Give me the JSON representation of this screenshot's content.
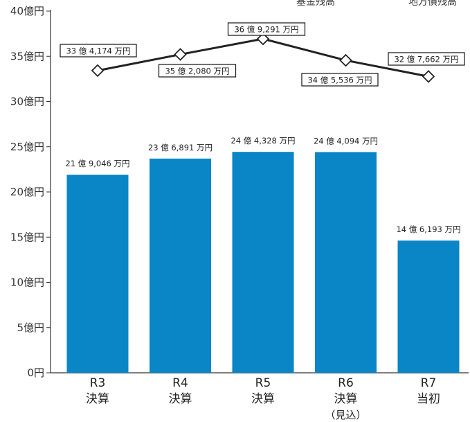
{
  "chart_data": {
    "type": "bar",
    "y_ticks": [
      "0円",
      "5億円",
      "10億円",
      "15億円",
      "20億円",
      "25億円",
      "30億円",
      "35億円",
      "40億円"
    ],
    "ylim": [
      0,
      40
    ],
    "unit": "億円",
    "categories": [
      {
        "line1": "R3",
        "line2": "決算",
        "line3": ""
      },
      {
        "line1": "R4",
        "line2": "決算",
        "line3": ""
      },
      {
        "line1": "R5",
        "line2": "決算",
        "line3": ""
      },
      {
        "line1": "R6",
        "line2": "決算",
        "line3": "（見込）"
      },
      {
        "line1": "R7",
        "line2": "当初",
        "line3": ""
      }
    ],
    "legend": [
      "基金残高",
      "地方債残高"
    ],
    "series": [
      {
        "name": "基金残高",
        "type": "bar",
        "color": "#0a86c6",
        "values": [
          21.9046,
          23.6891,
          24.4328,
          24.4094,
          14.6193
        ],
        "labels": [
          "21 億 9,046 万円",
          "23 億 6,891 万円",
          "24 億 4,328 万円",
          "24 億 4,094 万円",
          "14 億 6,193 万円"
        ]
      },
      {
        "name": "地方債残高",
        "type": "line",
        "color": "#222222",
        "values": [
          33.4174,
          35.208,
          36.9291,
          34.5536,
          32.7662
        ],
        "labels": [
          "33 億 4,174 万円",
          "35 億 2,080 万円",
          "36 億 9,291 万円",
          "34 億 5,536 万円",
          "32 億 7,662 万円"
        ]
      }
    ]
  }
}
